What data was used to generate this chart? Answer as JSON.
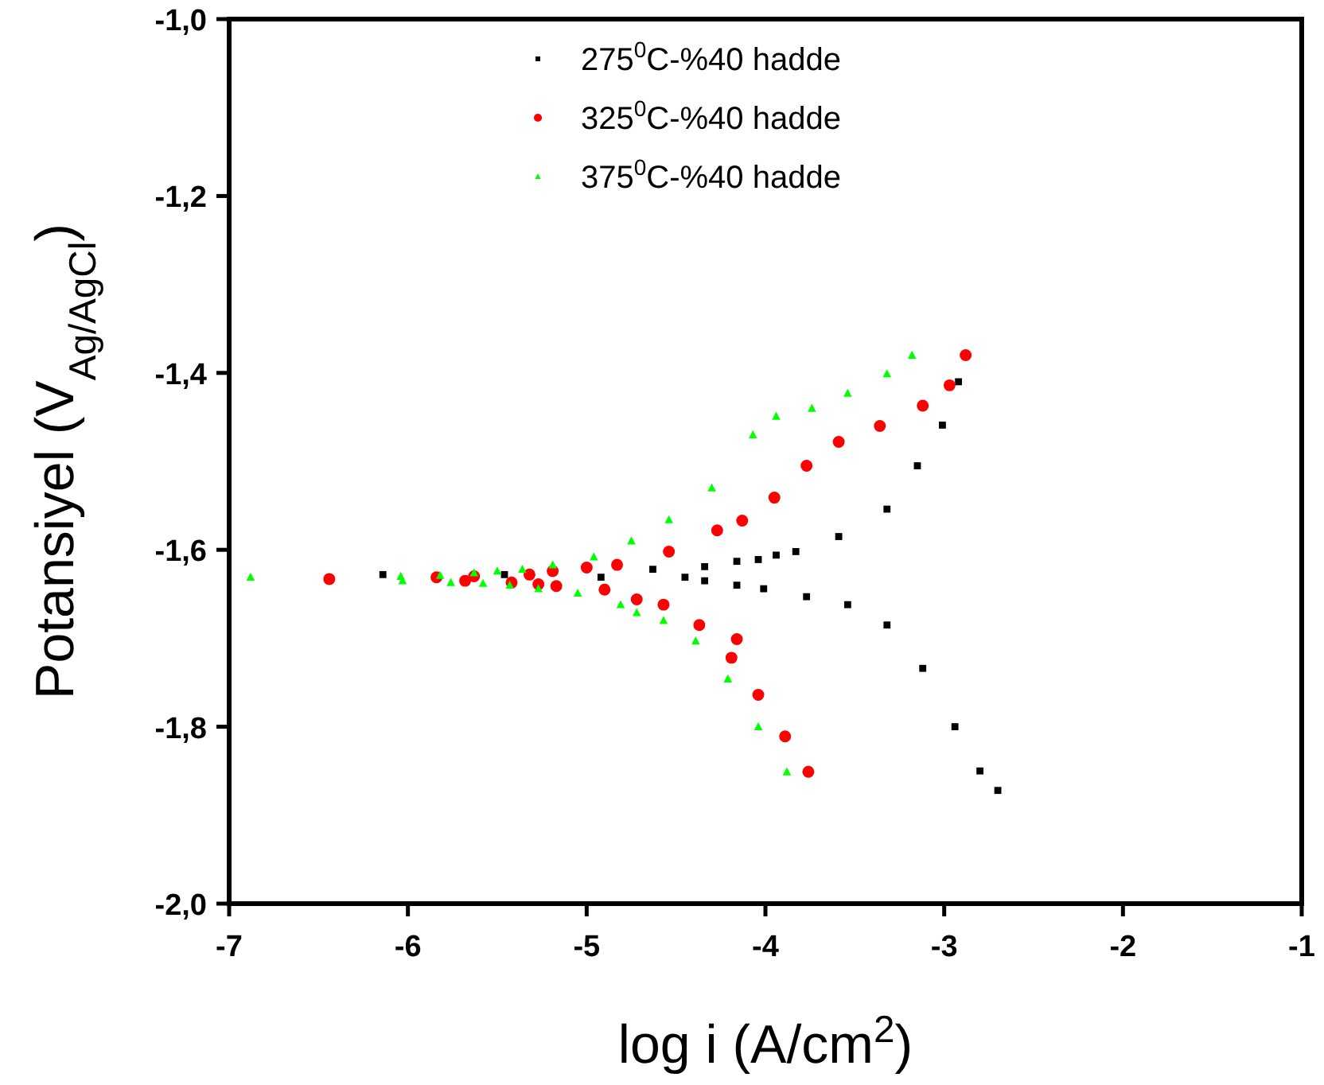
{
  "chart_data": {
    "type": "scatter",
    "xlabel": "log i (A/cm$^{2}$)",
    "ylabel": "Potansiyel (V$_{Ag/AgCl}$)",
    "xlim": [
      -7,
      -1
    ],
    "xticks": [
      -7,
      -6,
      -5,
      -4,
      -3,
      -2,
      -1
    ],
    "ylim": [
      -2,
      -1
    ],
    "yticks": [
      {
        "value": -2,
        "label": "-2,0"
      },
      {
        "value": -1.8,
        "label": "-1,8"
      },
      {
        "value": -1.6,
        "label": "-1,6"
      },
      {
        "value": -1.4,
        "label": "-1,4"
      },
      {
        "value": -1.2,
        "label": "-1,2"
      },
      {
        "value": -1,
        "label": "-1,0"
      }
    ],
    "grid": false,
    "legend": "top",
    "series": [
      {
        "name": "275$^{0}$C-%40 hadde",
        "color": "#000000",
        "marker": "square",
        "x": [
          -2.7,
          -2.8,
          -2.94,
          -3.12,
          -3.32,
          -3.54,
          -3.77,
          -4.01,
          -4.16,
          -4.34,
          -4.45,
          -4.63,
          -4.92,
          -5.46,
          -6.14,
          -4.34,
          -4.16,
          -4.04,
          -3.94,
          -3.83,
          -3.59,
          -3.32,
          -3.15,
          -3.01,
          -2.92
        ],
        "values": [
          -1.872,
          -1.85,
          -1.8,
          -1.734,
          -1.685,
          -1.662,
          -1.653,
          -1.644,
          -1.64,
          -1.635,
          -1.631,
          -1.622,
          -1.631,
          -1.628,
          -1.628,
          -1.619,
          -1.613,
          -1.611,
          -1.606,
          -1.602,
          -1.585,
          -1.554,
          -1.505,
          -1.459,
          -1.41
        ]
      },
      {
        "name": "325$^{0}$C-%40 hadde",
        "color": "#ff0000",
        "marker": "circle",
        "x": [
          -3.76,
          -3.89,
          -4.04,
          -4.16,
          -4.19,
          -4.37,
          -4.57,
          -4.72,
          -4.9,
          -5.17,
          -5.27,
          -5.42,
          -5.68,
          -5.84,
          -6.44,
          -5.63,
          -5.32,
          -5.19,
          -5.0,
          -4.83,
          -4.54,
          -4.27,
          -4.13,
          -3.95,
          -3.77,
          -3.59,
          -3.36,
          -3.12,
          -2.97,
          -2.88
        ],
        "values": [
          -1.851,
          -1.811,
          -1.764,
          -1.701,
          -1.722,
          -1.685,
          -1.662,
          -1.656,
          -1.645,
          -1.641,
          -1.639,
          -1.637,
          -1.635,
          -1.631,
          -1.633,
          -1.63,
          -1.628,
          -1.624,
          -1.62,
          -1.617,
          -1.602,
          -1.578,
          -1.567,
          -1.541,
          -1.505,
          -1.478,
          -1.46,
          -1.437,
          -1.414,
          -1.38
        ]
      },
      {
        "name": "375$^{0}$C-%40 hadde",
        "color": "#00ff00",
        "marker": "triangle",
        "x": [
          -3.88,
          -4.04,
          -4.21,
          -4.39,
          -4.57,
          -4.72,
          -4.81,
          -5.05,
          -5.27,
          -5.43,
          -5.58,
          -5.76,
          -6.03,
          -6.88,
          -6.04,
          -5.82,
          -5.63,
          -5.5,
          -5.36,
          -5.19,
          -4.96,
          -4.75,
          -4.54,
          -4.3,
          -4.07,
          -3.94,
          -3.74,
          -3.54,
          -3.32,
          -3.18
        ],
        "values": [
          -1.851,
          -1.8,
          -1.746,
          -1.703,
          -1.68,
          -1.671,
          -1.662,
          -1.649,
          -1.644,
          -1.64,
          -1.638,
          -1.637,
          -1.635,
          -1.631,
          -1.63,
          -1.629,
          -1.626,
          -1.624,
          -1.622,
          -1.617,
          -1.608,
          -1.59,
          -1.566,
          -1.53,
          -1.47,
          -1.449,
          -1.44,
          -1.423,
          -1.401,
          -1.38
        ]
      }
    ]
  }
}
